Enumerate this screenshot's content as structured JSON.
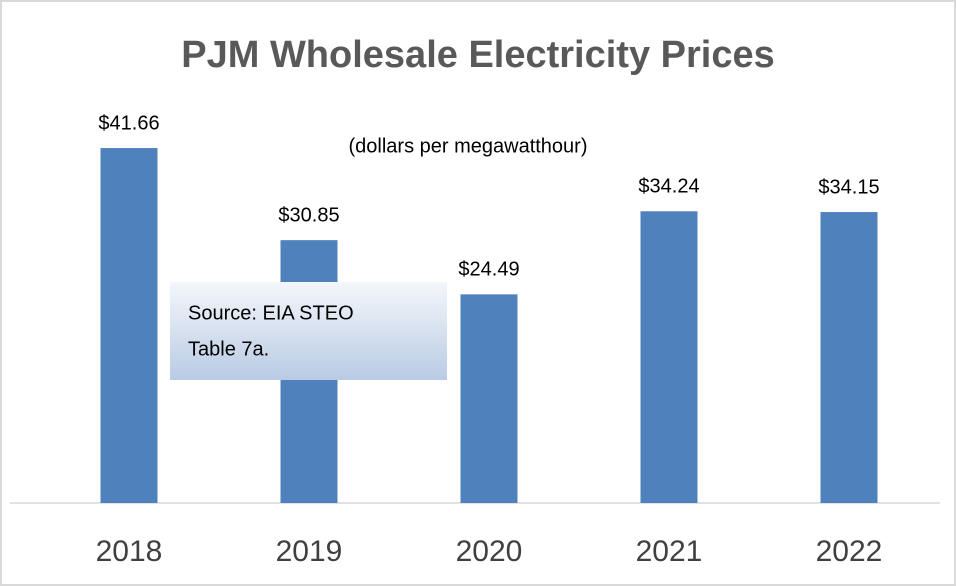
{
  "chart_data": {
    "type": "bar",
    "title": "PJM Wholesale Electricity Prices",
    "subtitle": "(dollars per megawatthour)",
    "annotation": [
      "Source: EIA STEO",
      "Table 7a."
    ],
    "categories": [
      "2018",
      "2019",
      "2020",
      "2021",
      "2022"
    ],
    "values": [
      41.66,
      30.85,
      24.49,
      34.24,
      34.15
    ],
    "value_labels": [
      "$41.66",
      "$30.85",
      "$24.49",
      "$34.24",
      "$34.15"
    ],
    "color": "#4f81bd",
    "ylim": [
      0,
      50
    ]
  }
}
